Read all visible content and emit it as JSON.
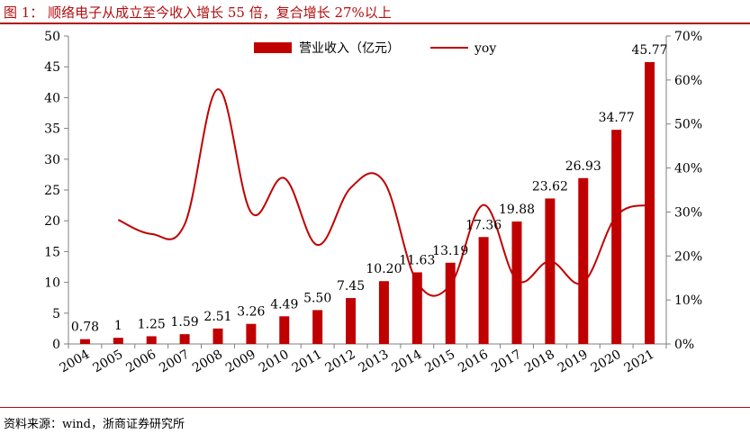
{
  "figure": {
    "title": "图 1： 顺络电子从成立至今收入增长 55 倍，复合增长 27%以上",
    "source": "资料来源：wind，浙商证券研究所"
  },
  "colors": {
    "bar": "#c00000",
    "line": "#c00000",
    "accent": "#b30d0f"
  },
  "chart_data": {
    "type": "bar",
    "title": "",
    "categories": [
      "2004",
      "2005",
      "2006",
      "2007",
      "2008",
      "2009",
      "2010",
      "2011",
      "2012",
      "2013",
      "2014",
      "2015",
      "2016",
      "2017",
      "2018",
      "2019",
      "2020",
      "2021"
    ],
    "series": [
      {
        "name": "营业收入（亿元）",
        "type": "bar",
        "axis": "left",
        "values": [
          0.78,
          1,
          1.25,
          1.59,
          2.51,
          3.26,
          4.49,
          5.5,
          7.45,
          10.2,
          11.63,
          13.19,
          17.36,
          19.88,
          23.62,
          26.93,
          34.77,
          45.77
        ],
        "labels": [
          "0.78",
          "1",
          "1.25",
          "1.59",
          "2.51",
          "3.26",
          "4.49",
          "5.50",
          "7.45",
          "10.20",
          "11.63",
          "13.19",
          "17.36",
          "19.88",
          "23.62",
          "26.93",
          "34.77",
          "45.77"
        ]
      },
      {
        "name": "yoy",
        "type": "line",
        "axis": "right",
        "values": [
          null,
          28.2,
          25.0,
          27.2,
          57.9,
          29.9,
          37.7,
          22.5,
          35.5,
          36.9,
          14.0,
          13.4,
          31.6,
          14.5,
          18.8,
          14.0,
          29.1,
          31.6
        ]
      }
    ],
    "y_left": {
      "ylim": [
        0,
        50
      ],
      "ticks": [
        "0",
        "5",
        "10",
        "15",
        "20",
        "25",
        "30",
        "35",
        "40",
        "45",
        "50"
      ]
    },
    "y_right": {
      "ylim": [
        0,
        70
      ],
      "unit": "%",
      "ticks": [
        "0%",
        "10%",
        "20%",
        "30%",
        "40%",
        "50%",
        "60%",
        "70%"
      ]
    },
    "legend": {
      "placement": "top-center"
    },
    "grid": false
  }
}
